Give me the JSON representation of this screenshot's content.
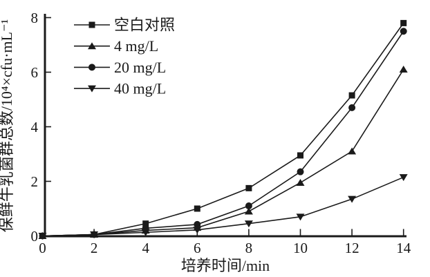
{
  "figure": {
    "background": "#ffffff",
    "line_color": "#1a1a1a"
  },
  "chart_data": {
    "type": "line",
    "title": "",
    "xlabel": "培养时间/min",
    "ylabel": "保鲜牛乳菌群总数/10⁴×cfu·mL⁻¹",
    "x": [
      0,
      2,
      4,
      6,
      8,
      10,
      12,
      14
    ],
    "xticks": [
      0,
      2,
      4,
      6,
      8,
      10,
      12,
      14
    ],
    "yticks": [
      0,
      2,
      4,
      6,
      8
    ],
    "xlim": [
      0,
      14
    ],
    "ylim": [
      0,
      8
    ],
    "grid": false,
    "legend_position": "top-left",
    "series": [
      {
        "name": "空白对照",
        "marker": "square",
        "color": "#1a1a1a",
        "values": [
          0,
          0.05,
          0.45,
          1.0,
          1.75,
          2.95,
          5.15,
          7.8
        ]
      },
      {
        "name": "4 mg/L",
        "marker": "triangle-up",
        "color": "#1a1a1a",
        "values": [
          0,
          0.05,
          0.2,
          0.3,
          0.9,
          1.95,
          3.1,
          6.1
        ]
      },
      {
        "name": "20 mg/L",
        "marker": "circle",
        "color": "#1a1a1a",
        "values": [
          0,
          0.05,
          0.28,
          0.42,
          1.1,
          2.35,
          4.7,
          7.5
        ]
      },
      {
        "name": "40 mg/L",
        "marker": "triangle-down",
        "color": "#1a1a1a",
        "values": [
          0,
          0.05,
          0.13,
          0.22,
          0.45,
          0.7,
          1.35,
          2.15
        ]
      }
    ]
  }
}
